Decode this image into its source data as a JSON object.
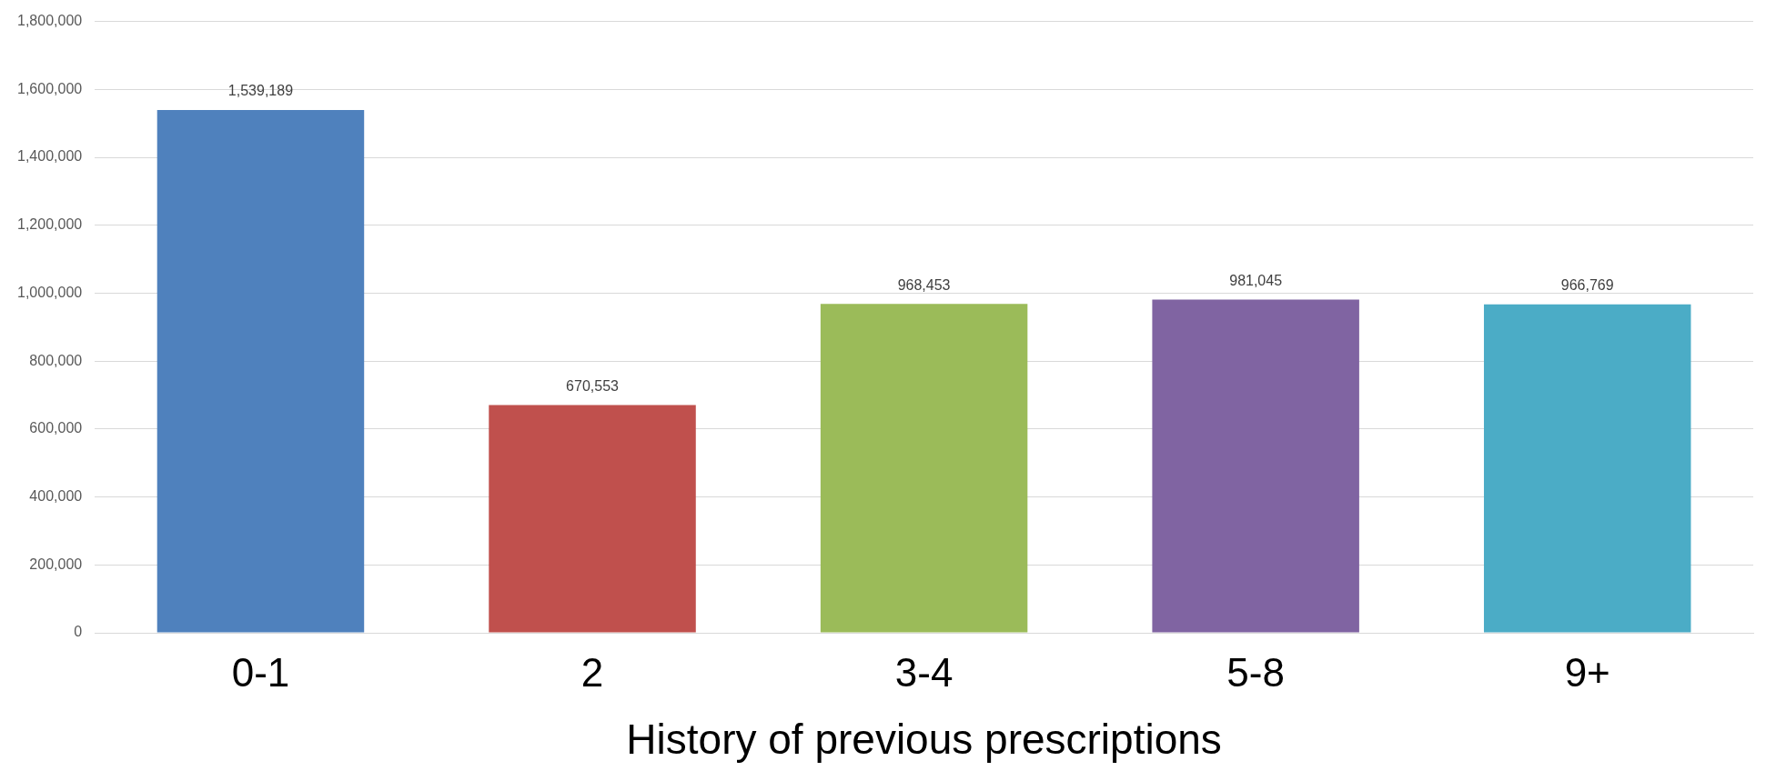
{
  "chart_data": {
    "type": "bar",
    "xlabel": "History of previous prescriptions",
    "categories": [
      "0-1",
      "2",
      "3-4",
      "5-8",
      "9+"
    ],
    "values": [
      1539189,
      670553,
      968453,
      981045,
      966769
    ],
    "value_labels": [
      "1,539,189",
      "670,553",
      "968,453",
      "981,045",
      "966,769"
    ],
    "colors": [
      "#4f81bd",
      "#c0504d",
      "#9bbb59",
      "#8064a2",
      "#4bacc6"
    ],
    "ylim": [
      0,
      1800000
    ],
    "yticks": [
      0,
      {
        "value": 200000,
        "label": "200,000"
      },
      {
        "value": 400000,
        "label": "400,000"
      },
      {
        "value": 600000,
        "label": "600,000"
      },
      {
        "value": 800000,
        "label": "800,000"
      },
      {
        "value": 1000000,
        "label": "1,000,000"
      },
      {
        "value": 1200000,
        "label": "1,200,000"
      },
      {
        "value": 1400000,
        "label": "1,400,000"
      },
      {
        "value": 1600000,
        "label": "1,600,000"
      },
      {
        "value": 1800000,
        "label": "1,800,000"
      }
    ],
    "grid": "y",
    "legend": false
  }
}
